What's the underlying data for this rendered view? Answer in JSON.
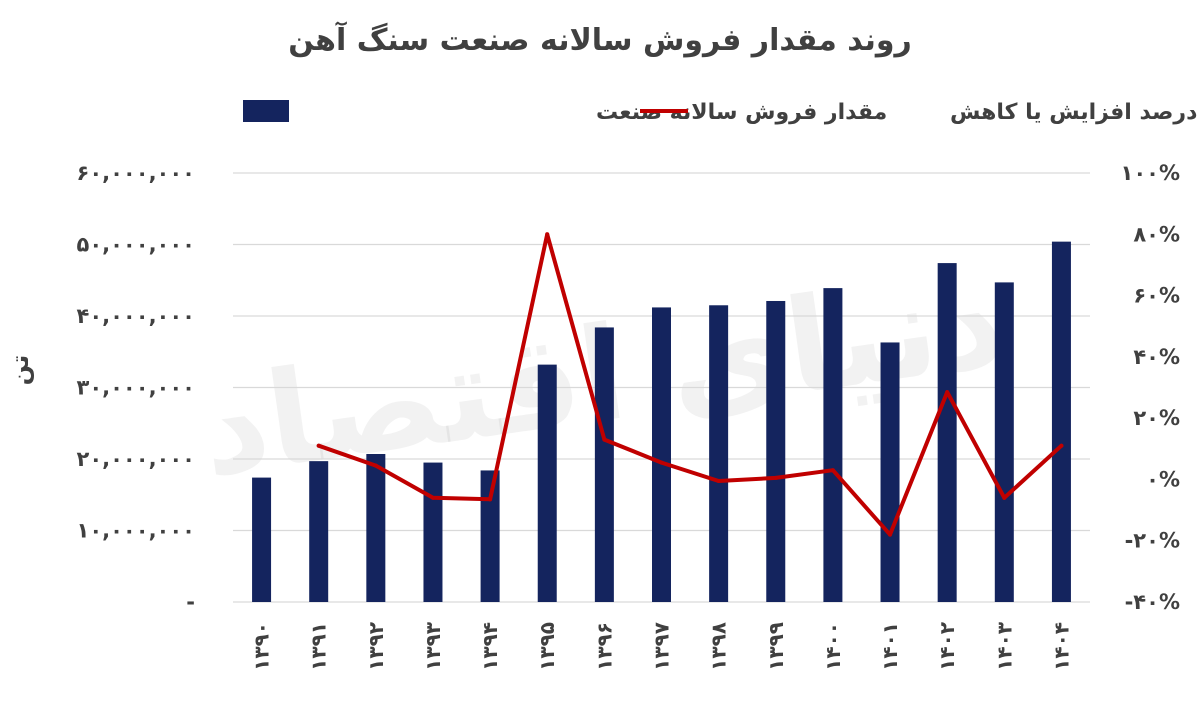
{
  "chart_data": {
    "type": "bar",
    "title": "روند مقدار فروش سالانه صنعت سنگ آهن",
    "ylabel": "تن",
    "legend_position": "top",
    "grid": true,
    "categories": [
      "۱۳۹۰",
      "۱۳۹۱",
      "۱۳۹۲",
      "۱۳۹۳",
      "۱۳۹۴",
      "۱۳۹۵",
      "۱۳۹۶",
      "۱۳۹۷",
      "۱۳۹۸",
      "۱۳۹۹",
      "۱۴۰۰",
      "۱۴۰۱",
      "۱۴۰۲",
      "۱۴۰۳",
      "۱۴۰۴"
    ],
    "ylim": [
      0,
      60000000
    ],
    "y2lim": [
      -40,
      100
    ],
    "y_ticks": [
      {
        "value": 0,
        "label": "-"
      },
      {
        "value": 10000000,
        "label": "۱۰,۰۰۰,۰۰۰"
      },
      {
        "value": 20000000,
        "label": "۲۰,۰۰۰,۰۰۰"
      },
      {
        "value": 30000000,
        "label": "۳۰,۰۰۰,۰۰۰"
      },
      {
        "value": 40000000,
        "label": "۴۰,۰۰۰,۰۰۰"
      },
      {
        "value": 50000000,
        "label": "۵۰,۰۰۰,۰۰۰"
      },
      {
        "value": 60000000,
        "label": "۶۰,۰۰۰,۰۰۰"
      }
    ],
    "y2_ticks": [
      {
        "value": -40,
        "label": "-۴۰%"
      },
      {
        "value": -20,
        "label": "-۲۰%"
      },
      {
        "value": 0,
        "label": "۰%"
      },
      {
        "value": 20,
        "label": "۲۰%"
      },
      {
        "value": 40,
        "label": "۴۰%"
      },
      {
        "value": 60,
        "label": "۶۰%"
      },
      {
        "value": 80,
        "label": "۸۰%"
      },
      {
        "value": 100,
        "label": "۱۰۰%"
      }
    ],
    "series": [
      {
        "name": "مقدار فروش سالانه صنعت",
        "type": "bar",
        "axis": "left",
        "color": "#14245e",
        "values": [
          17400000,
          19700000,
          20700000,
          19500000,
          18400000,
          33200000,
          38400000,
          41200000,
          41500000,
          42100000,
          43900000,
          36300000,
          47400000,
          44700000,
          50400000
        ]
      },
      {
        "name": "درصد افزایش یا کاهش",
        "type": "line",
        "axis": "right",
        "color": "#c00000",
        "values": [
          null,
          11,
          4.5,
          -6,
          -6.5,
          80,
          13,
          5.5,
          -0.5,
          0.5,
          3,
          -18,
          28.5,
          -6,
          11
        ]
      }
    ]
  }
}
